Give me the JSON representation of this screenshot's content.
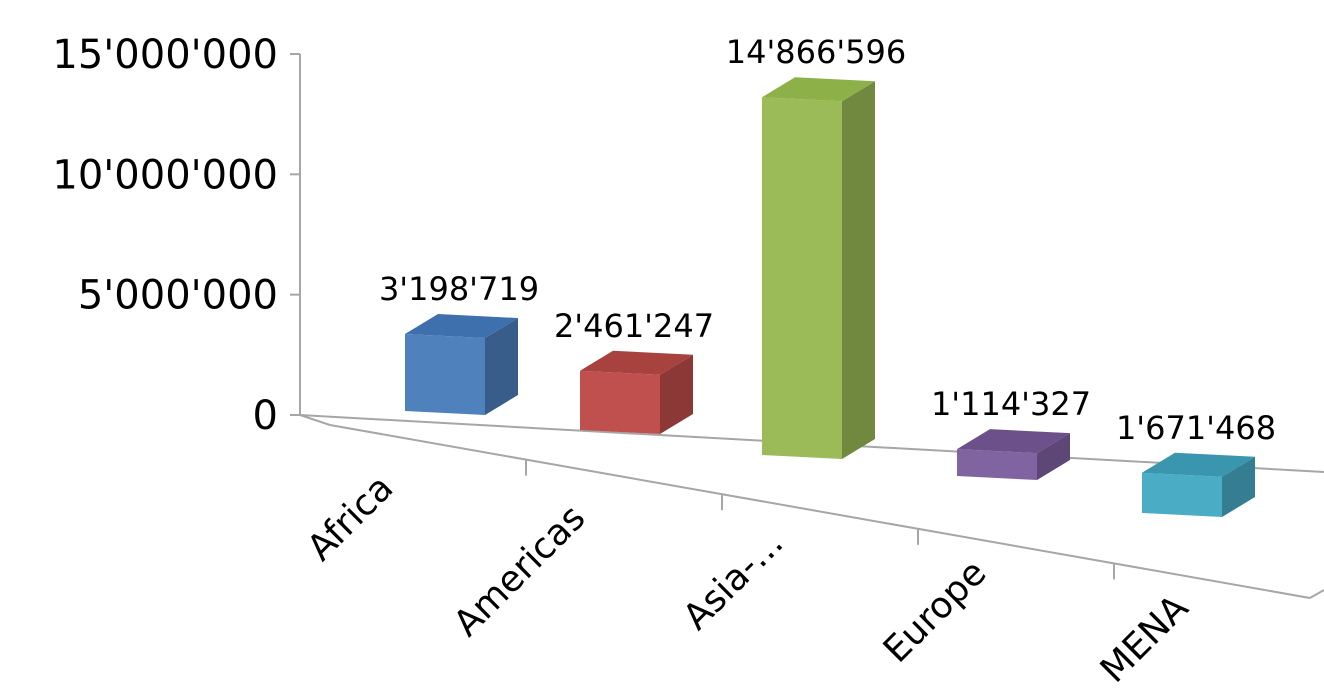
{
  "chart_data": {
    "type": "bar",
    "style": "3d-column",
    "title": "",
    "xlabel": "",
    "ylabel": "",
    "categories": [
      "Africa",
      "Americas",
      "Asia-...",
      "Europe",
      "MENA"
    ],
    "values": [
      3198719,
      2461247,
      14866596,
      1114327,
      1671468
    ],
    "value_labels": [
      "3'198'719",
      "2'461'247",
      "14'866'596",
      "1'114'327",
      "1'671'468"
    ],
    "y_ticks": [
      0,
      5000000,
      10000000,
      15000000
    ],
    "y_tick_labels": [
      "0",
      "5'000'000",
      "10'000'000",
      "15'000'000"
    ],
    "ylim": [
      0,
      15000000
    ],
    "grid": false,
    "legend": "none",
    "colors": [
      {
        "front": "#4f81bd",
        "top": "#3e70ae",
        "side": "#385d8a"
      },
      {
        "front": "#c0504d",
        "top": "#a8423f",
        "side": "#8c3836"
      },
      {
        "front": "#9bbb59",
        "top": "#8db049",
        "side": "#71893f"
      },
      {
        "front": "#8064a2",
        "top": "#6b5089",
        "side": "#5c4776"
      },
      {
        "front": "#4bacc6",
        "top": "#3a96ae",
        "side": "#357d91"
      }
    ],
    "axis_color": "#a6a6a6"
  }
}
